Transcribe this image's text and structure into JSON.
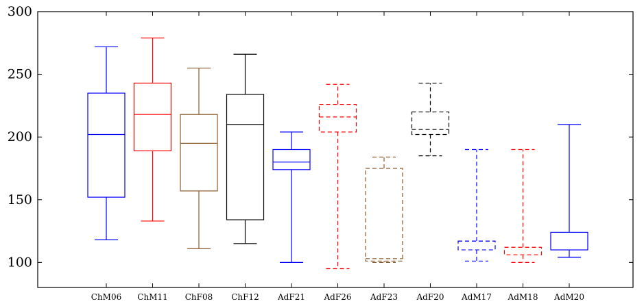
{
  "chart_data": {
    "type": "boxplot",
    "title": "",
    "xlabel": "",
    "ylabel": "",
    "ylim": [
      80,
      300
    ],
    "yticks": [
      100,
      150,
      200,
      250,
      300
    ],
    "grid": false,
    "categories": [
      "ChM06",
      "ChM11",
      "ChF08",
      "ChF12",
      "AdF21",
      "AdF26",
      "AdF23",
      "AdF20",
      "AdM17",
      "AdM18",
      "AdM20"
    ],
    "boxes": [
      {
        "name": "ChM06",
        "whisker_low": 118,
        "q1": 152,
        "median": 202,
        "q3": 235,
        "whisker_high": 272,
        "color": "#0000ff",
        "dashed": false
      },
      {
        "name": "ChM11",
        "whisker_low": 133,
        "q1": 189,
        "median": 218,
        "q3": 243,
        "whisker_high": 279,
        "color": "#ff0000",
        "dashed": false
      },
      {
        "name": "ChF08",
        "whisker_low": 111,
        "q1": 157,
        "median": 195,
        "q3": 218,
        "whisker_high": 255,
        "color": "#8b5a2b",
        "dashed": false
      },
      {
        "name": "ChF12",
        "whisker_low": 115,
        "q1": 134,
        "median": 210,
        "q3": 234,
        "whisker_high": 266,
        "color": "#000000",
        "dashed": false
      },
      {
        "name": "AdF21",
        "whisker_low": 100,
        "q1": 174,
        "median": 180,
        "q3": 190,
        "whisker_high": 204,
        "color": "#0000ff",
        "dashed": false
      },
      {
        "name": "AdF26",
        "whisker_low": 95,
        "q1": 204,
        "median": 216,
        "q3": 226,
        "whisker_high": 242,
        "color": "#ff0000",
        "dashed": true
      },
      {
        "name": "AdF23",
        "whisker_low": 100,
        "q1": 101,
        "median": 103,
        "q3": 175,
        "whisker_high": 184,
        "color": "#8b5a2b",
        "dashed": true
      },
      {
        "name": "AdF20",
        "whisker_low": 185,
        "q1": 202,
        "median": 206,
        "q3": 220,
        "whisker_high": 243,
        "color": "#000000",
        "dashed": true
      },
      {
        "name": "AdM17",
        "whisker_low": 101,
        "q1": 110,
        "median": 117,
        "q3": 117,
        "whisker_high": 190,
        "color": "#0000ff",
        "dashed": true
      },
      {
        "name": "AdM18",
        "whisker_low": 100,
        "q1": 106,
        "median": 112,
        "q3": 112,
        "whisker_high": 190,
        "color": "#ff0000",
        "dashed": true
      },
      {
        "name": "AdM20",
        "whisker_low": 104,
        "q1": 110,
        "median": 110,
        "q3": 124,
        "whisker_high": 210,
        "color": "#0000ff",
        "dashed": false
      }
    ]
  }
}
